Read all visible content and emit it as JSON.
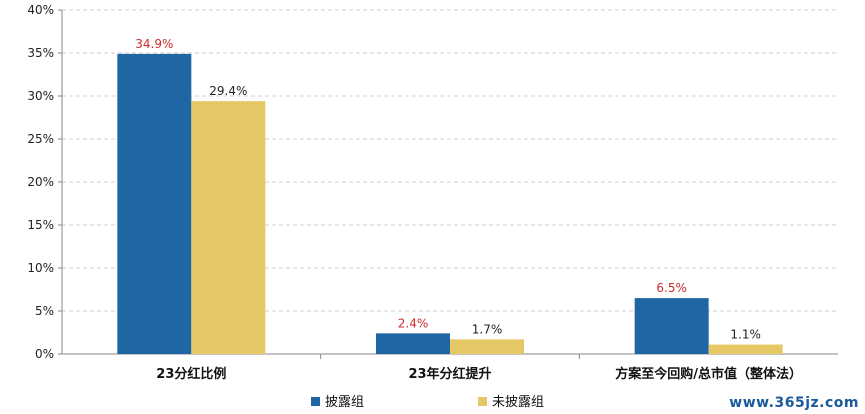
{
  "chart_data": {
    "type": "bar",
    "categories": [
      "23分红比例",
      "23年分红提升",
      "方案至今回购/总市值（整体法）"
    ],
    "series": [
      {
        "name": "披露组",
        "values": [
          34.9,
          2.4,
          6.5
        ],
        "color": "#1f66a5",
        "label_color": "#cc2a2a"
      },
      {
        "name": "未披露组",
        "values": [
          29.4,
          1.7,
          1.1
        ],
        "color": "#e5c865",
        "label_color": "#222222"
      }
    ],
    "data_labels": [
      [
        "34.9%",
        "2.4%",
        "6.5%"
      ],
      [
        "29.4%",
        "1.7%",
        "1.1%"
      ]
    ],
    "y_ticks": [
      "0%",
      "5%",
      "10%",
      "15%",
      "20%",
      "25%",
      "30%",
      "35%",
      "40%"
    ],
    "ylim": [
      0,
      40
    ],
    "grid": true,
    "legend_position": "bottom"
  },
  "watermark": "www.365jz.com"
}
